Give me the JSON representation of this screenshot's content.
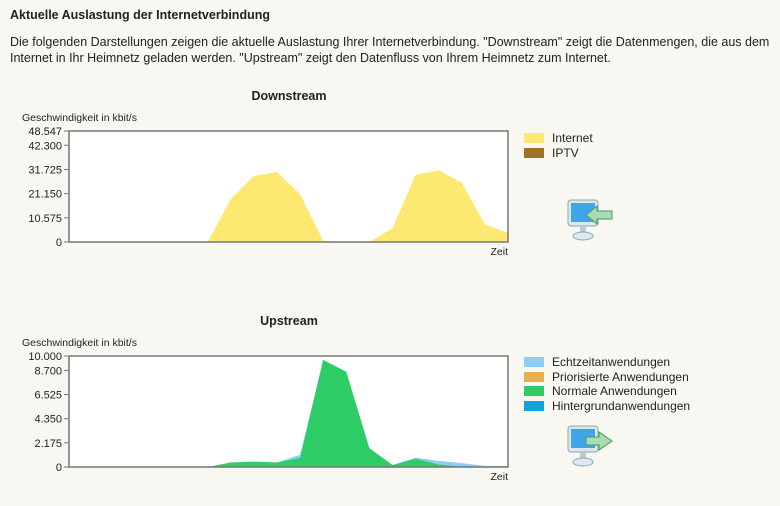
{
  "header": {
    "title": "Aktuelle Auslastung der Internetverbindung",
    "intro": "Die folgenden Darstellungen zeigen die aktuelle Auslastung Ihrer Internetverbindung. \"Downstream\" zeigt die Datenmengen, die aus dem Internet in Ihr Heimnetz geladen werden. \"Upstream\" zeigt den Datenfluss von Ihrem Heimnetz zum Internet."
  },
  "icons": {
    "downstream": "computer-download-arrow-icon",
    "upstream": "computer-upload-arrow-icon"
  },
  "chart_data": [
    {
      "type": "area",
      "title": "Downstream",
      "ylabel": "Geschwindigkeit in kbit/s",
      "xlabel": "Zeit",
      "ylim": [
        0,
        48547
      ],
      "yticks": [
        "48.547",
        "42.300",
        "31.725",
        "21.150",
        "10.575",
        "0"
      ],
      "ytick_values": [
        48547,
        42300,
        31725,
        21150,
        10575,
        0
      ],
      "x": [
        0,
        1,
        2,
        3,
        4,
        5,
        6,
        7,
        8,
        9,
        10,
        11,
        12,
        13,
        14,
        15,
        16,
        17,
        18,
        19
      ],
      "series": [
        {
          "name": "Internet",
          "color": "#fde872",
          "values": [
            0,
            0,
            0,
            0,
            0,
            0,
            0,
            18700,
            28900,
            30600,
            21000,
            500,
            0,
            0,
            6000,
            29400,
            31300,
            25900,
            7700,
            4000
          ]
        },
        {
          "name": "IPTV",
          "color": "#9b7424",
          "values": [
            0,
            0,
            0,
            0,
            0,
            0,
            0,
            0,
            0,
            0,
            0,
            0,
            0,
            0,
            0,
            0,
            0,
            0,
            0,
            0
          ]
        }
      ],
      "legend": "right",
      "grid": false
    },
    {
      "type": "area",
      "title": "Upstream",
      "ylabel": "Geschwindigkeit in kbit/s",
      "xlabel": "Zeit",
      "ylim": [
        0,
        10000
      ],
      "yticks": [
        "10.000",
        "8.700",
        "6.525",
        "4.350",
        "2.175",
        "0"
      ],
      "ytick_values": [
        10000,
        8700,
        6525,
        4350,
        2175,
        0
      ],
      "x": [
        0,
        1,
        2,
        3,
        4,
        5,
        6,
        7,
        8,
        9,
        10,
        11,
        12,
        13,
        14,
        15,
        16,
        17,
        18,
        19
      ],
      "series": [
        {
          "name": "Echtzeitanwendungen",
          "color": "#8ccff5",
          "values": [
            0,
            0,
            0,
            0,
            0,
            0,
            0,
            0,
            20,
            0,
            250,
            0,
            0,
            0,
            0,
            90,
            300,
            300,
            100,
            100
          ]
        },
        {
          "name": "Priorisierte Anwendungen",
          "color": "#e4b04a",
          "values": [
            0,
            0,
            0,
            0,
            0,
            0,
            0,
            0,
            0,
            0,
            0,
            0,
            0,
            0,
            0,
            0,
            0,
            0,
            0,
            0
          ]
        },
        {
          "name": "Normale Anwendungen",
          "color": "#2ecc66",
          "values": [
            0,
            0,
            0,
            0,
            0,
            0,
            0,
            400,
            480,
            400,
            850,
            9650,
            8580,
            1700,
            180,
            760,
            250,
            50,
            0,
            0
          ]
        },
        {
          "name": "Hintergrundanwendungen",
          "color": "#0ea5d8",
          "values": [
            0,
            0,
            0,
            0,
            0,
            0,
            0,
            0,
            0,
            0,
            0,
            0,
            0,
            0,
            0,
            0,
            0,
            0,
            0,
            0
          ]
        }
      ],
      "legend": "right",
      "grid": false
    }
  ]
}
